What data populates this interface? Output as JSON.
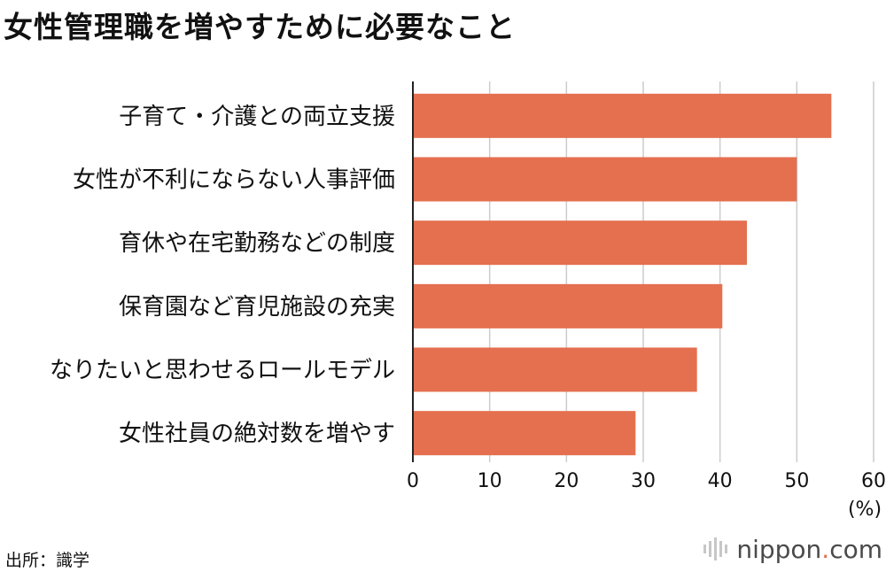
{
  "chart_data": {
    "type": "bar",
    "orientation": "horizontal",
    "title": "女性管理職を増やすために必要なこと",
    "categories": [
      "子育て・介護との両立支援",
      "女性が不利にならない人事評価",
      "育休や在宅勤務などの制度",
      "保育園など育児施設の充実",
      "なりたいと思わせるロールモデル",
      "女性社員の絶対数を増やす"
    ],
    "values": [
      54.5,
      50.0,
      43.5,
      40.3,
      37.0,
      29.0
    ],
    "xlim": [
      0,
      60
    ],
    "xticks": [
      "0",
      "10",
      "20",
      "30",
      "40",
      "50",
      "60"
    ],
    "unit": "(%)",
    "grid": true,
    "bar_color": "#e4704f",
    "grid_color": "#cccccc"
  },
  "source": "出所：識学",
  "brand": {
    "name": "nippon",
    "dot": ".",
    "tld": "com"
  }
}
